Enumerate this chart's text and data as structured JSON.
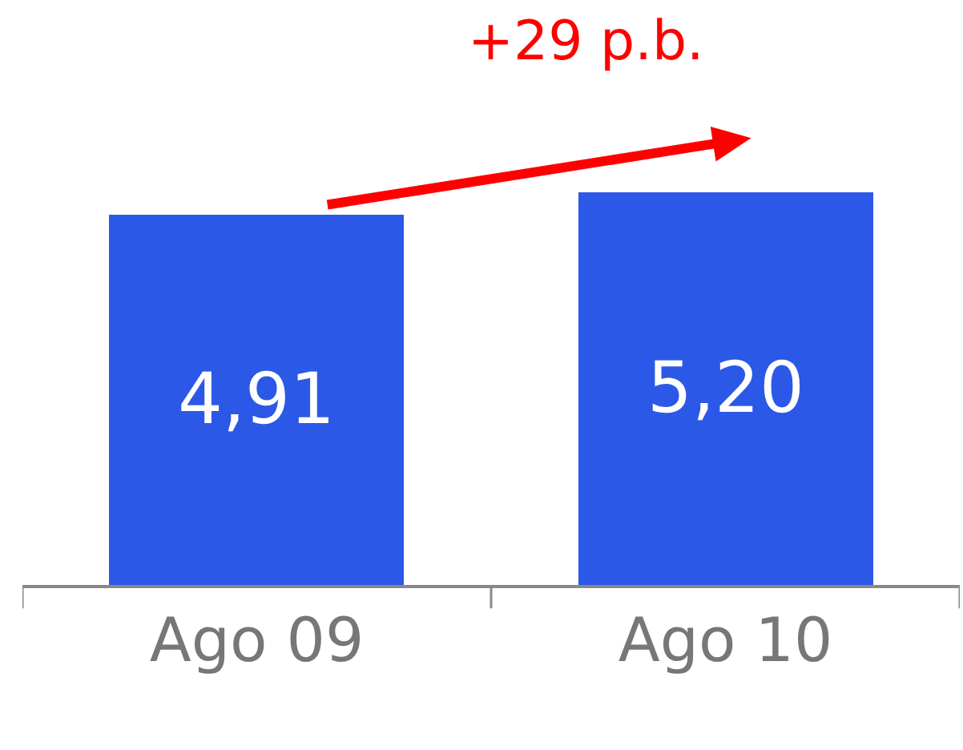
{
  "chart_data": {
    "type": "bar",
    "categories": [
      "Ago 09",
      "Ago 10"
    ],
    "values": [
      4.91,
      5.2
    ],
    "value_labels": [
      "4,91",
      "5,20"
    ],
    "color": "#2b58e6",
    "annotations": [
      "+29 p.b."
    ]
  }
}
